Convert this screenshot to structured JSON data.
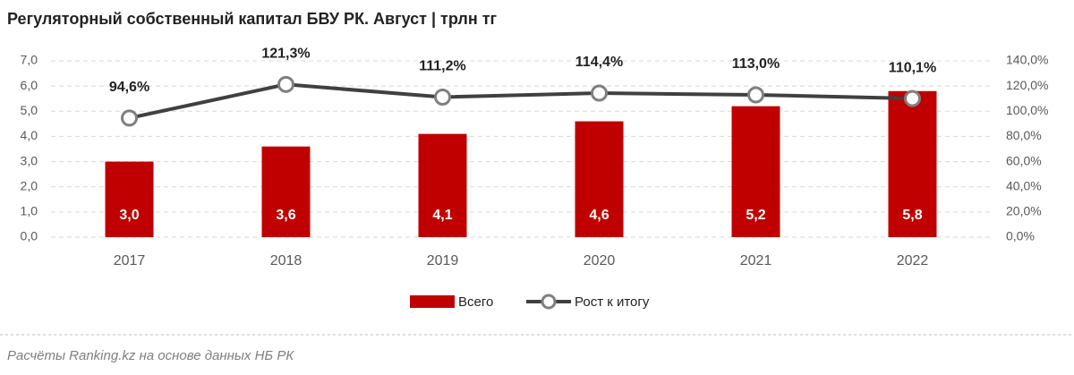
{
  "chart_data": {
    "type": "combo",
    "title": "Регуляторный собственный капитал БВУ РК. Август | трлн тг",
    "source": "Расчёты Ranking.kz на основе данных НБ РК",
    "categories": [
      "2017",
      "2018",
      "2019",
      "2020",
      "2021",
      "2022"
    ],
    "series": [
      {
        "name": "Всего",
        "type": "bar",
        "color": "#c00000",
        "values": [
          3.0,
          3.6,
          4.1,
          4.6,
          5.2,
          5.8
        ],
        "value_labels": [
          "3,0",
          "3,6",
          "4,1",
          "4,6",
          "5,2",
          "5,8"
        ]
      },
      {
        "name": "Рост к итогу",
        "type": "line",
        "axis": "y2",
        "color": "#404040",
        "values": [
          94.6,
          121.3,
          111.2,
          114.4,
          113.0,
          110.1
        ],
        "value_labels": [
          "94,6%",
          "121,3%",
          "111,2%",
          "114,4%",
          "113,0%",
          "110,1%"
        ]
      }
    ],
    "ylim": [
      0,
      7
    ],
    "yticks": [
      {
        "value": 0,
        "label": "0,0"
      },
      {
        "value": 1,
        "label": "1,0"
      },
      {
        "value": 2,
        "label": "2,0"
      },
      {
        "value": 3,
        "label": "3,0"
      },
      {
        "value": 4,
        "label": "4,0"
      },
      {
        "value": 5,
        "label": "5,0"
      },
      {
        "value": 6,
        "label": "6,0"
      },
      {
        "value": 7,
        "label": "7,0"
      }
    ],
    "y2lim": [
      0,
      140
    ],
    "y2ticks": [
      {
        "value": 0,
        "label": "0,0%"
      },
      {
        "value": 20,
        "label": "20,0%"
      },
      {
        "value": 40,
        "label": "40,0%"
      },
      {
        "value": 60,
        "label": "60,0%"
      },
      {
        "value": 80,
        "label": "80,0%"
      },
      {
        "value": 100,
        "label": "100,0%"
      },
      {
        "value": 120,
        "label": "120,0%"
      },
      {
        "value": 140,
        "label": "140,0%"
      }
    ],
    "grid": true
  }
}
